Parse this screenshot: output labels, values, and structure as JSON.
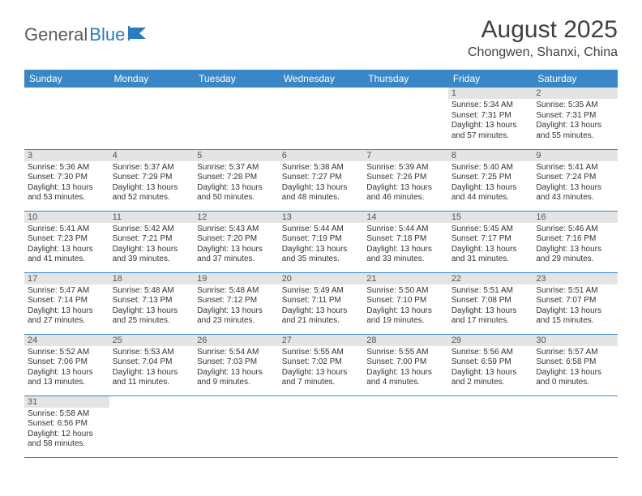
{
  "logo": {
    "general": "General",
    "blue": "Blue"
  },
  "title": "August 2025",
  "location": "Chongwen, Shanxi, China",
  "weekdays": [
    "Sunday",
    "Monday",
    "Tuesday",
    "Wednesday",
    "Thursday",
    "Friday",
    "Saturday"
  ],
  "header_bg": "#3a87c7",
  "daynum_bg": "#e4e4e4",
  "row_border": "#3a87c7",
  "days": {
    "1": {
      "sunrise": "5:34 AM",
      "sunset": "7:31 PM",
      "daylight": "13 hours and 57 minutes."
    },
    "2": {
      "sunrise": "5:35 AM",
      "sunset": "7:31 PM",
      "daylight": "13 hours and 55 minutes."
    },
    "3": {
      "sunrise": "5:36 AM",
      "sunset": "7:30 PM",
      "daylight": "13 hours and 53 minutes."
    },
    "4": {
      "sunrise": "5:37 AM",
      "sunset": "7:29 PM",
      "daylight": "13 hours and 52 minutes."
    },
    "5": {
      "sunrise": "5:37 AM",
      "sunset": "7:28 PM",
      "daylight": "13 hours and 50 minutes."
    },
    "6": {
      "sunrise": "5:38 AM",
      "sunset": "7:27 PM",
      "daylight": "13 hours and 48 minutes."
    },
    "7": {
      "sunrise": "5:39 AM",
      "sunset": "7:26 PM",
      "daylight": "13 hours and 46 minutes."
    },
    "8": {
      "sunrise": "5:40 AM",
      "sunset": "7:25 PM",
      "daylight": "13 hours and 44 minutes."
    },
    "9": {
      "sunrise": "5:41 AM",
      "sunset": "7:24 PM",
      "daylight": "13 hours and 43 minutes."
    },
    "10": {
      "sunrise": "5:41 AM",
      "sunset": "7:23 PM",
      "daylight": "13 hours and 41 minutes."
    },
    "11": {
      "sunrise": "5:42 AM",
      "sunset": "7:21 PM",
      "daylight": "13 hours and 39 minutes."
    },
    "12": {
      "sunrise": "5:43 AM",
      "sunset": "7:20 PM",
      "daylight": "13 hours and 37 minutes."
    },
    "13": {
      "sunrise": "5:44 AM",
      "sunset": "7:19 PM",
      "daylight": "13 hours and 35 minutes."
    },
    "14": {
      "sunrise": "5:44 AM",
      "sunset": "7:18 PM",
      "daylight": "13 hours and 33 minutes."
    },
    "15": {
      "sunrise": "5:45 AM",
      "sunset": "7:17 PM",
      "daylight": "13 hours and 31 minutes."
    },
    "16": {
      "sunrise": "5:46 AM",
      "sunset": "7:16 PM",
      "daylight": "13 hours and 29 minutes."
    },
    "17": {
      "sunrise": "5:47 AM",
      "sunset": "7:14 PM",
      "daylight": "13 hours and 27 minutes."
    },
    "18": {
      "sunrise": "5:48 AM",
      "sunset": "7:13 PM",
      "daylight": "13 hours and 25 minutes."
    },
    "19": {
      "sunrise": "5:48 AM",
      "sunset": "7:12 PM",
      "daylight": "13 hours and 23 minutes."
    },
    "20": {
      "sunrise": "5:49 AM",
      "sunset": "7:11 PM",
      "daylight": "13 hours and 21 minutes."
    },
    "21": {
      "sunrise": "5:50 AM",
      "sunset": "7:10 PM",
      "daylight": "13 hours and 19 minutes."
    },
    "22": {
      "sunrise": "5:51 AM",
      "sunset": "7:08 PM",
      "daylight": "13 hours and 17 minutes."
    },
    "23": {
      "sunrise": "5:51 AM",
      "sunset": "7:07 PM",
      "daylight": "13 hours and 15 minutes."
    },
    "24": {
      "sunrise": "5:52 AM",
      "sunset": "7:06 PM",
      "daylight": "13 hours and 13 minutes."
    },
    "25": {
      "sunrise": "5:53 AM",
      "sunset": "7:04 PM",
      "daylight": "13 hours and 11 minutes."
    },
    "26": {
      "sunrise": "5:54 AM",
      "sunset": "7:03 PM",
      "daylight": "13 hours and 9 minutes."
    },
    "27": {
      "sunrise": "5:55 AM",
      "sunset": "7:02 PM",
      "daylight": "13 hours and 7 minutes."
    },
    "28": {
      "sunrise": "5:55 AM",
      "sunset": "7:00 PM",
      "daylight": "13 hours and 4 minutes."
    },
    "29": {
      "sunrise": "5:56 AM",
      "sunset": "6:59 PM",
      "daylight": "13 hours and 2 minutes."
    },
    "30": {
      "sunrise": "5:57 AM",
      "sunset": "6:58 PM",
      "daylight": "13 hours and 0 minutes."
    },
    "31": {
      "sunrise": "5:58 AM",
      "sunset": "6:56 PM",
      "daylight": "12 hours and 58 minutes."
    }
  },
  "labels": {
    "sunrise": "Sunrise:",
    "sunset": "Sunset:",
    "daylight": "Daylight:"
  },
  "grid": [
    [
      null,
      null,
      null,
      null,
      null,
      "1",
      "2"
    ],
    [
      "3",
      "4",
      "5",
      "6",
      "7",
      "8",
      "9"
    ],
    [
      "10",
      "11",
      "12",
      "13",
      "14",
      "15",
      "16"
    ],
    [
      "17",
      "18",
      "19",
      "20",
      "21",
      "22",
      "23"
    ],
    [
      "24",
      "25",
      "26",
      "27",
      "28",
      "29",
      "30"
    ],
    [
      "31",
      null,
      null,
      null,
      null,
      null,
      null
    ]
  ]
}
